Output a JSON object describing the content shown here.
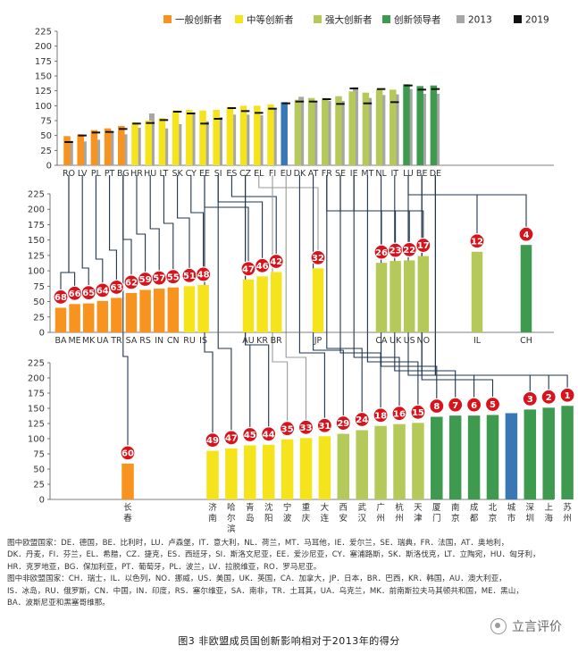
{
  "chart_data": {
    "type": "bar",
    "legend": [
      {
        "name": "一般创新者",
        "color": "#f7931e"
      },
      {
        "name": "中等创新者",
        "color": "#f5e31c"
      },
      {
        "name": "强大创新者",
        "color": "#b5c95a"
      },
      {
        "name": "创新领导者",
        "color": "#3e9a4e"
      },
      {
        "name": "2013",
        "color": "#a6a6a6"
      },
      {
        "name": "2019",
        "color": "#111111"
      }
    ],
    "yticks": [
      0,
      25,
      50,
      75,
      100,
      125,
      150,
      175,
      200,
      225
    ],
    "ylim": [
      0,
      225
    ],
    "colors": {
      "modest": "#f7931e",
      "moderate": "#f5e31c",
      "strong": "#b5c95a",
      "leader": "#3e9a4e",
      "eu": "#3a78b5",
      "grey": "#a6a6a6",
      "mark": "#111111",
      "line": "#1e3550"
    },
    "panels": [
      {
        "id": "eu-countries",
        "bars": [
          {
            "label": "RO",
            "value": 49,
            "v2013": 41,
            "v2019": 39,
            "cls": "modest"
          },
          {
            "label": "LV",
            "value": 52,
            "v2013": 40,
            "v2019": 50,
            "cls": "modest"
          },
          {
            "label": "PL",
            "value": 59,
            "v2013": 43,
            "v2019": 55,
            "cls": "modest"
          },
          {
            "label": "PT",
            "value": 62,
            "v2013": 56,
            "v2019": 56,
            "cls": "modest"
          },
          {
            "label": "BG",
            "value": 66,
            "v2013": 52,
            "v2019": 61,
            "cls": "modest"
          },
          {
            "label": "HR",
            "value": 72,
            "v2013": 63,
            "v2019": 70,
            "cls": "moderate"
          },
          {
            "label": "HU",
            "value": 75,
            "v2013": 87,
            "v2019": 71,
            "cls": "moderate"
          },
          {
            "label": "LT",
            "value": 79,
            "v2013": 62,
            "v2019": 76,
            "cls": "moderate"
          },
          {
            "label": "SK",
            "value": 92,
            "v2013": 69,
            "v2019": 90,
            "cls": "moderate"
          },
          {
            "label": "CY",
            "value": 93,
            "v2013": 89,
            "v2019": 87,
            "cls": "moderate"
          },
          {
            "label": "EE",
            "value": 92,
            "v2013": 74,
            "v2019": 70,
            "cls": "moderate"
          },
          {
            "label": "SI",
            "value": 93,
            "v2013": 81,
            "v2019": 78,
            "cls": "moderate"
          },
          {
            "label": "ES",
            "value": 98,
            "v2013": 85,
            "v2019": 96,
            "cls": "moderate"
          },
          {
            "label": "CZ",
            "value": 100,
            "v2013": 85,
            "v2019": 91,
            "cls": "moderate"
          },
          {
            "label": "EL",
            "value": 100,
            "v2013": 84,
            "v2019": 88,
            "cls": "moderate"
          },
          {
            "label": "FI",
            "value": 102,
            "v2013": 96,
            "v2019": 95,
            "cls": "moderate"
          },
          {
            "label": "EU",
            "value": 106,
            "v2013": null,
            "v2019": 104,
            "cls": "eu"
          },
          {
            "label": "DK",
            "value": 110,
            "v2013": 115,
            "v2019": 107,
            "cls": "strong"
          },
          {
            "label": "AT",
            "value": 113,
            "v2013": 107,
            "v2019": 107,
            "cls": "strong"
          },
          {
            "label": "FR",
            "value": 113,
            "v2013": 108,
            "v2019": 111,
            "cls": "strong"
          },
          {
            "label": "SE",
            "value": 116,
            "v2013": 108,
            "v2019": 103,
            "cls": "strong"
          },
          {
            "label": "IE",
            "value": 124,
            "v2013": 131,
            "v2019": 129,
            "cls": "strong"
          },
          {
            "label": "MT",
            "value": 122,
            "v2013": 113,
            "v2019": 104,
            "cls": "strong"
          },
          {
            "label": "NL",
            "value": 127,
            "v2013": 118,
            "v2019": 128,
            "cls": "strong"
          },
          {
            "label": "IT",
            "value": 127,
            "v2013": 119,
            "v2019": 106,
            "cls": "strong"
          },
          {
            "label": "LU",
            "value": 136,
            "v2013": 128,
            "v2019": 134,
            "cls": "leader"
          },
          {
            "label": "BE",
            "value": 133,
            "v2013": 120,
            "v2019": 127,
            "cls": "leader"
          },
          {
            "label": "DE",
            "value": 134,
            "v2013": 120,
            "v2019": 128,
            "cls": "leader"
          }
        ]
      },
      {
        "id": "non-eu-countries",
        "bars": [
          {
            "label": "BA",
            "value": 40,
            "cls": "modest",
            "rank": "68"
          },
          {
            "label": "ME",
            "value": 46,
            "cls": "modest",
            "rank": "66"
          },
          {
            "label": "MK",
            "value": 47,
            "cls": "modest",
            "rank": "65"
          },
          {
            "label": "UA",
            "value": 51,
            "cls": "modest",
            "rank": "64"
          },
          {
            "label": "TR",
            "value": 56,
            "cls": "modest",
            "rank": "63"
          },
          {
            "label": "SA",
            "value": 64,
            "cls": "modest",
            "rank": "62"
          },
          {
            "label": "RS",
            "value": 69,
            "cls": "modest",
            "rank": "59"
          },
          {
            "label": "IN",
            "value": 71,
            "cls": "modest",
            "rank": "57"
          },
          {
            "label": "CN",
            "value": 73,
            "cls": "modest",
            "rank": "55"
          },
          {
            "label": "RU",
            "value": 75,
            "cls": "moderate",
            "rank": "51"
          },
          {
            "label": "IS",
            "value": 77,
            "cls": "moderate",
            "rank": "48"
          },
          {
            "label": "AU",
            "value": 86,
            "cls": "moderate",
            "rank": "47"
          },
          {
            "label": "KR",
            "value": 91,
            "cls": "moderate",
            "rank": "46"
          },
          {
            "label": "BR",
            "value": 98,
            "cls": "moderate",
            "rank": "42"
          },
          {
            "label": "JP",
            "value": 104,
            "cls": "moderate",
            "rank": "32"
          },
          {
            "label": "CA",
            "value": 113,
            "cls": "strong",
            "rank": "26"
          },
          {
            "label": "UK",
            "value": 116,
            "cls": "strong",
            "rank": "23"
          },
          {
            "label": "US",
            "value": 117,
            "cls": "strong",
            "rank": "22"
          },
          {
            "label": "NO",
            "value": 124,
            "cls": "strong",
            "rank": "17"
          },
          {
            "label": "IL",
            "value": 131,
            "cls": "strong",
            "rank": "12"
          },
          {
            "label": "CH",
            "value": 142,
            "cls": "leader",
            "rank": "4"
          }
        ]
      },
      {
        "id": "cities",
        "bars": [
          {
            "label": "长春",
            "value": 59,
            "cls": "modest",
            "rank": "60"
          },
          {
            "label": "济南",
            "value": 80,
            "cls": "moderate",
            "rank": "49"
          },
          {
            "label": "哈尔滨",
            "value": 84,
            "cls": "moderate",
            "rank": "47"
          },
          {
            "label": "青岛",
            "value": 89,
            "cls": "moderate",
            "rank": "45"
          },
          {
            "label": "沈阳",
            "value": 90,
            "cls": "moderate",
            "rank": "44"
          },
          {
            "label": "宁波",
            "value": 99,
            "cls": "moderate",
            "rank": "35"
          },
          {
            "label": "重庆",
            "value": 101,
            "cls": "moderate",
            "rank": "33"
          },
          {
            "label": "大连",
            "value": 104,
            "cls": "moderate",
            "rank": "31"
          },
          {
            "label": "西安",
            "value": 108,
            "cls": "strong",
            "rank": "29"
          },
          {
            "label": "武汉",
            "value": 114,
            "cls": "strong",
            "rank": "24"
          },
          {
            "label": "广州",
            "value": 121,
            "cls": "strong",
            "rank": "18"
          },
          {
            "label": "杭州",
            "value": 124,
            "cls": "strong",
            "rank": "16"
          },
          {
            "label": "天津",
            "value": 126,
            "cls": "strong",
            "rank": "15"
          },
          {
            "label": "厦门",
            "value": 136,
            "cls": "leader",
            "rank": "8"
          },
          {
            "label": "南京",
            "value": 138,
            "cls": "leader",
            "rank": "7"
          },
          {
            "label": "成都",
            "value": 138,
            "cls": "leader",
            "rank": "6"
          },
          {
            "label": "北京",
            "value": 139,
            "cls": "leader",
            "rank": "5"
          },
          {
            "label": "城市",
            "value": 142,
            "cls": "eu"
          },
          {
            "label": "深圳",
            "value": 148,
            "cls": "leader",
            "rank": "3"
          },
          {
            "label": "上海",
            "value": 151,
            "cls": "leader",
            "rank": "2"
          },
          {
            "label": "苏州",
            "value": 154,
            "cls": "leader",
            "rank": "1"
          }
        ]
      }
    ]
  },
  "notes": [
    "图中欧盟国家：DE．德国，BE．比利时，LU．卢森堡，IT．意大利，NL．荷兰，MT．马耳他，IE．爱尔兰，SE．瑞典，FR．法国，AT．奥地利，",
    "DK．丹麦，FI．芬兰，EL．希腊，CZ．捷克，ES．西班牙，SI．斯洛文尼亚，EE．爱沙尼亚，CY．塞浦路斯，SK．斯洛伐克，LT．立陶宛，HU．匈牙利，",
    "HR．克罗地亚，BG．保加利亚，PT．葡萄牙，PL．波兰，LV．拉脱维亚，RO．罗马尼亚。",
    "图中非欧盟国家：CH．瑞士，IL．以色列，NO．挪威，US．美国，UK．英国，CA．加拿大，JP．日本，BR．巴西，KR．韩国，AU．澳大利亚，",
    "IS．冰岛，RU．俄罗斯，CN．中国，IN．印度，RS．塞尔维亚，SA．南非，TR．土耳其，UA．乌克兰，MK．前南斯拉夫马其顿共和国，ME．黑山，",
    "BA．波斯尼亚和黑塞哥维那。"
  ],
  "caption": "图3  非欧盟成员国创新影响相对于2013年的得分",
  "watermark": "立言评价"
}
